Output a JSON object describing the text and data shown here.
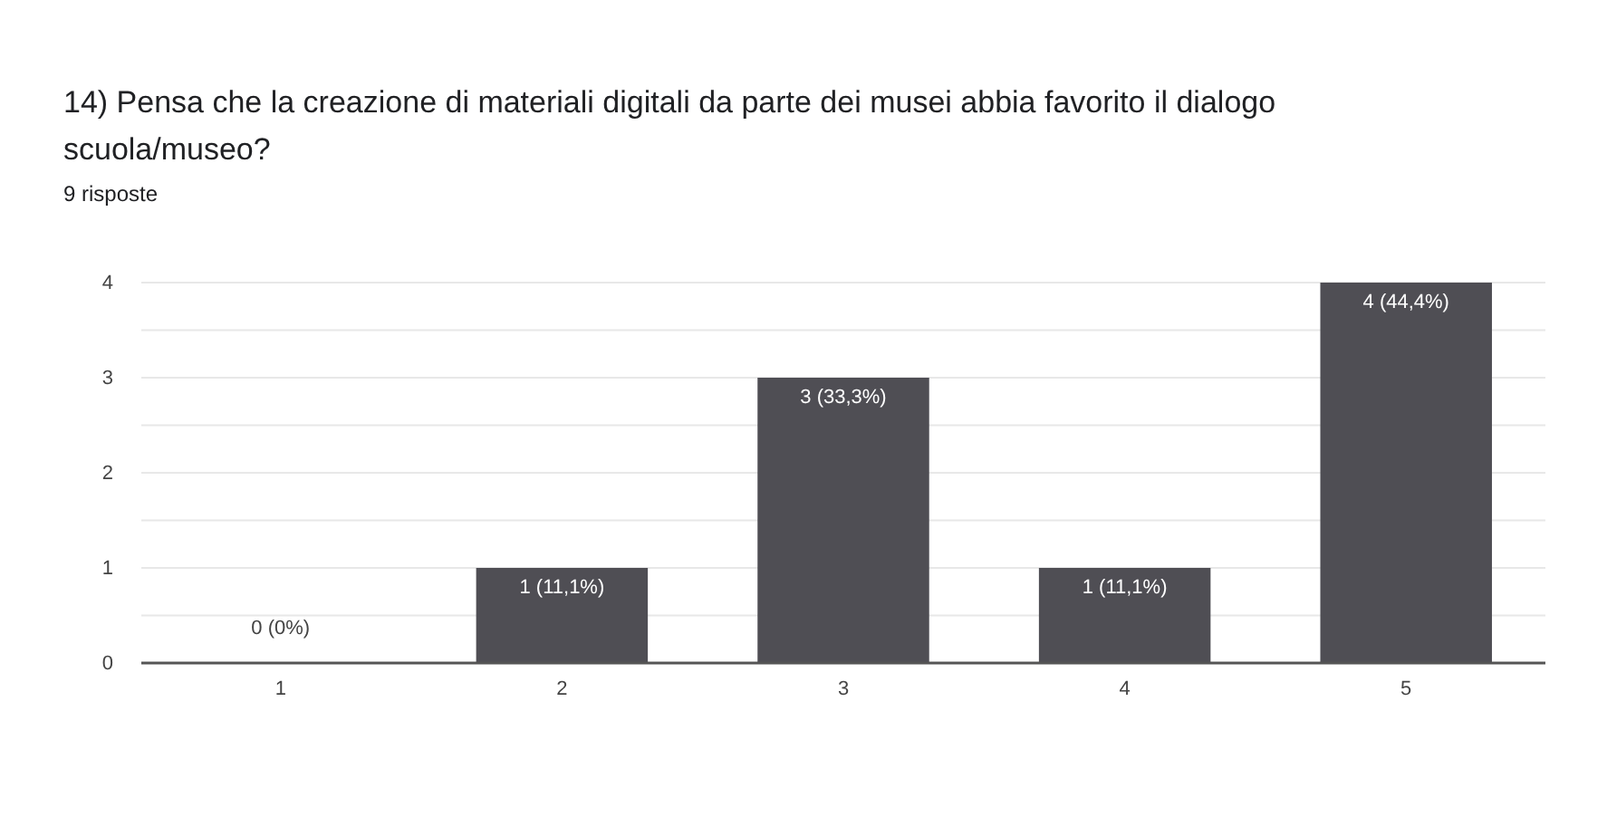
{
  "chart_data": {
    "type": "bar",
    "title": "14) Pensa che la creazione di materiali digitali da parte dei musei abbia favorito il dialogo scuola/museo?",
    "subtitle": "9 risposte",
    "categories": [
      "1",
      "2",
      "3",
      "4",
      "5"
    ],
    "values": [
      0,
      1,
      3,
      1,
      4
    ],
    "value_labels": [
      "0 (0%)",
      "1 (11,1%)",
      "3 (33,3%)",
      "1 (11,1%)",
      "4 (44,4%)"
    ],
    "color": "#4f4e54",
    "ylim": [
      0,
      4
    ],
    "yticks": [
      0,
      {
        "value": 0.5,
        "label": null
      },
      1,
      {
        "value": 1.5,
        "label": null
      },
      2,
      {
        "value": 2.5,
        "label": null
      },
      3,
      {
        "value": 3.5,
        "label": null
      },
      4
    ],
    "grid": true
  }
}
